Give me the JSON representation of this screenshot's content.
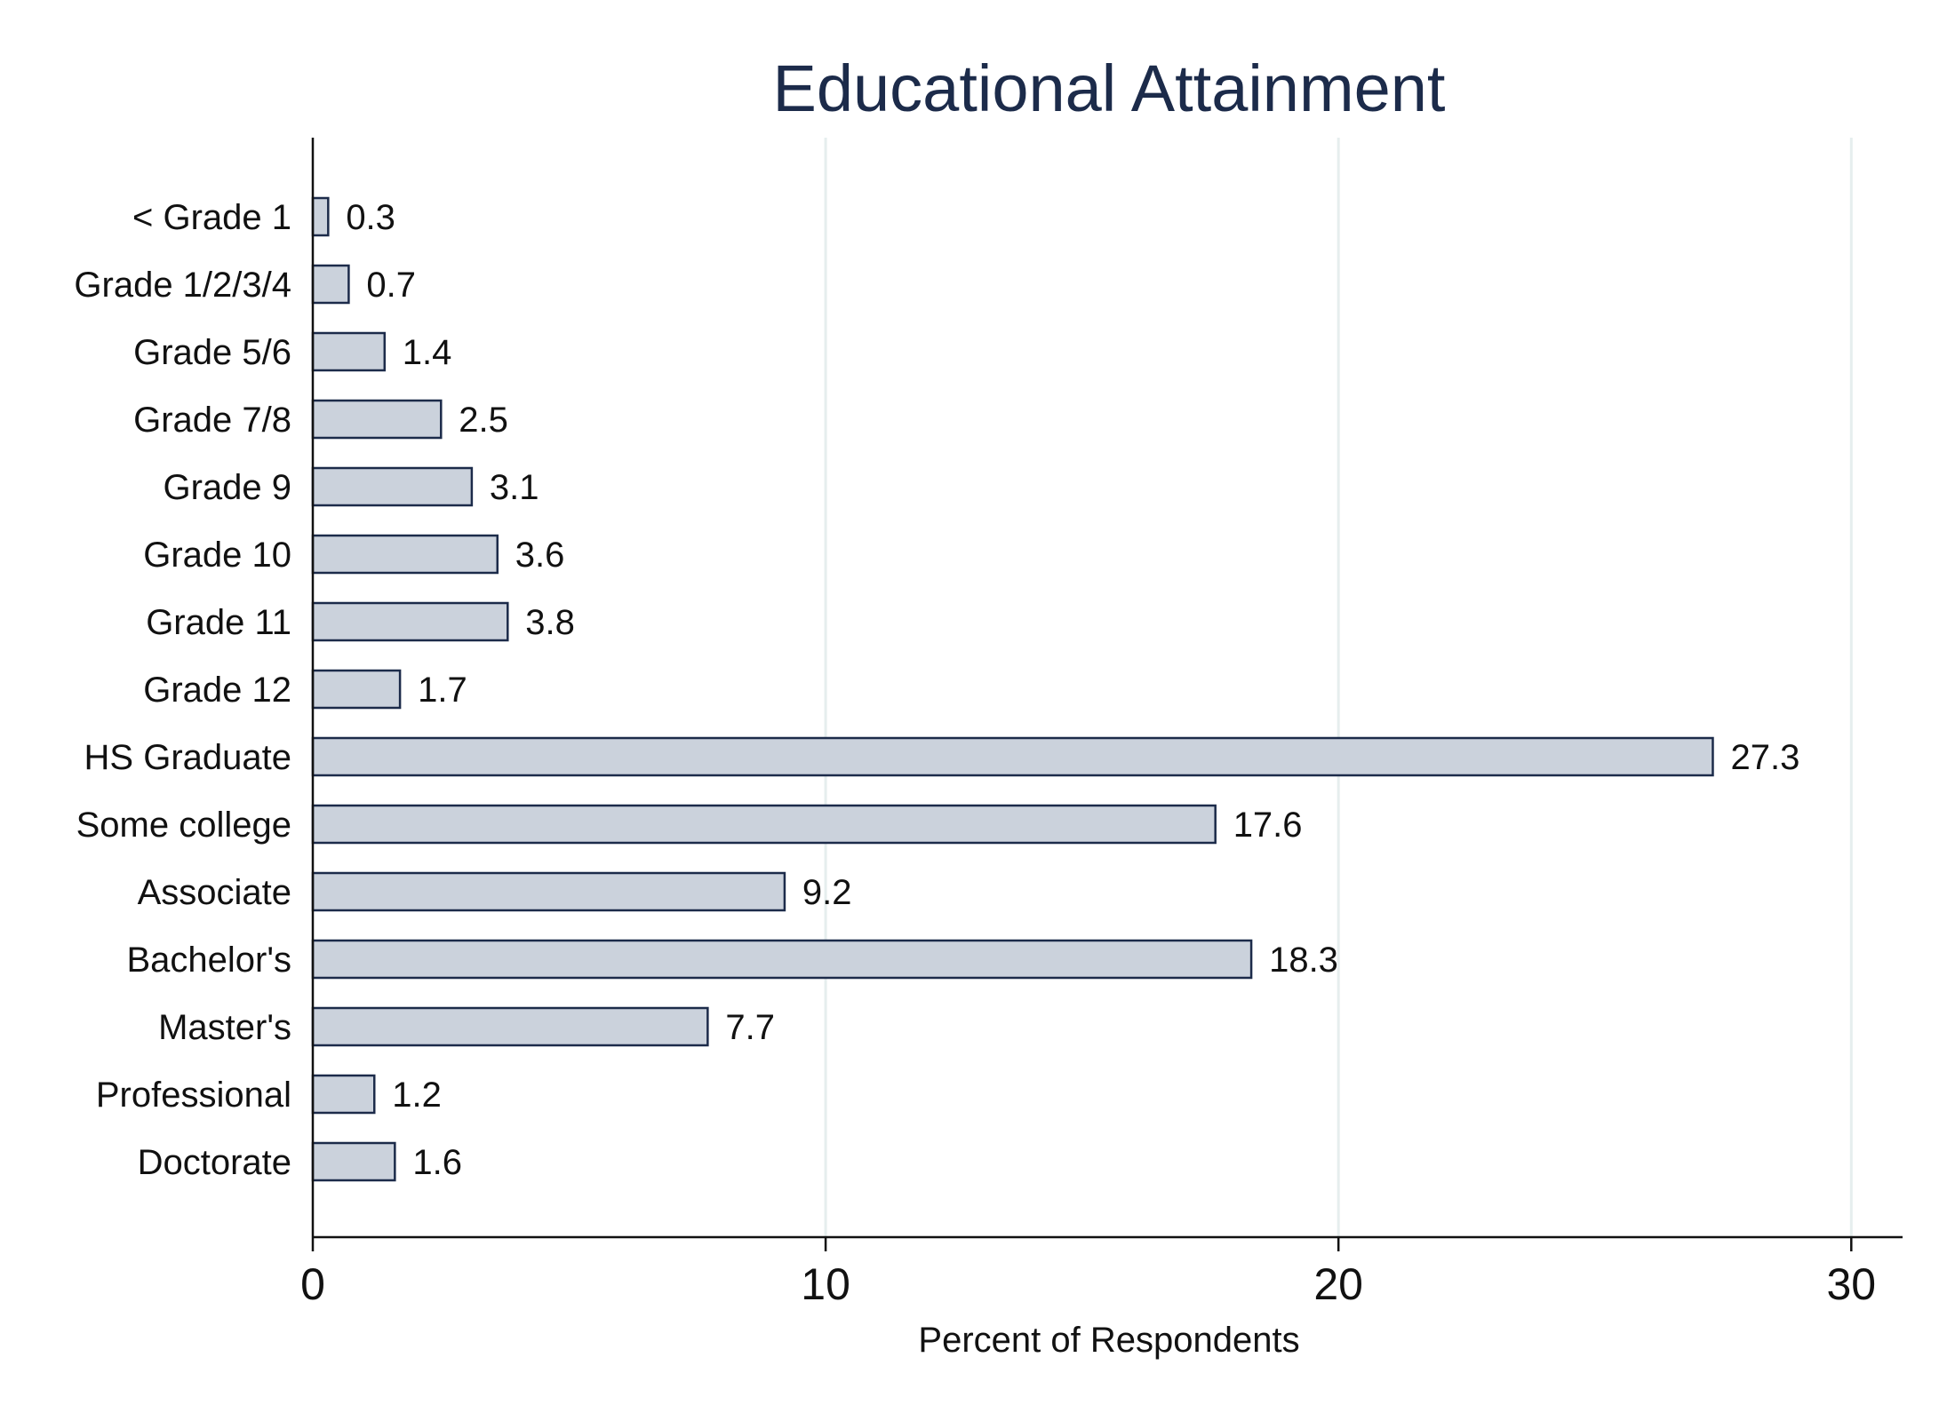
{
  "chart_data": {
    "type": "bar",
    "orientation": "horizontal",
    "title": "Educational Attainment",
    "xlabel": "Percent of Respondents",
    "ylabel": "",
    "xlim": [
      0,
      31
    ],
    "xticks": [
      0,
      10,
      20,
      30
    ],
    "grid": true,
    "categories": [
      "< Grade 1",
      "Grade 1/2/3/4",
      "Grade 5/6",
      "Grade 7/8",
      "Grade 9",
      "Grade 10",
      "Grade 11",
      "Grade 12",
      "HS Graduate",
      "Some college",
      "Associate",
      "Bachelor's",
      "Master's",
      "Professional",
      "Doctorate"
    ],
    "values": [
      0.3,
      0.7,
      1.4,
      2.5,
      3.1,
      3.6,
      3.8,
      1.7,
      27.3,
      17.6,
      9.2,
      18.3,
      7.7,
      1.2,
      1.6
    ],
    "value_labels": [
      "0.3",
      "0.7",
      "1.4",
      "2.5",
      "3.1",
      "3.6",
      "3.8",
      "1.7",
      "27.3",
      "17.6",
      "9.2",
      "18.3",
      "7.7",
      "1.2",
      "1.6"
    ],
    "colors": {
      "bar_fill": "#cbd2dc",
      "bar_stroke": "#1c2b4a",
      "title": "#1c2b4a",
      "grid": "#e6eeee",
      "axis": "#111111"
    }
  }
}
